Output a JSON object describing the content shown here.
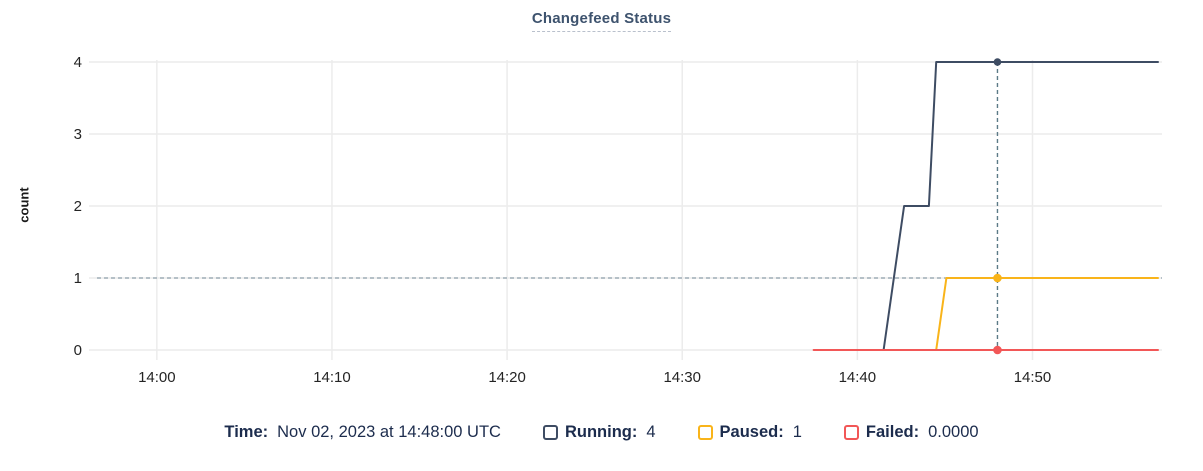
{
  "title": "Changefeed Status",
  "ylabel": "count",
  "colors": {
    "running": "#3e4c63",
    "paused": "#f9b41a",
    "failed": "#f25757",
    "grid": "#ececec",
    "crosshair": "#5c7a87",
    "crosshair_h": "#8fa1ac",
    "tick_text": "#242424",
    "legend_text": "#1c2c4d",
    "title_text": "#3e536e"
  },
  "legend": {
    "time_label": "Time:",
    "time_value": "Nov 02, 2023 at 14:48:00 UTC",
    "running_label": "Running:",
    "running_value": "4",
    "paused_label": "Paused:",
    "paused_value": "1",
    "failed_label": "Failed:",
    "failed_value": "0.0000"
  },
  "chart_data": {
    "type": "line",
    "title": "Changefeed Status",
    "xlabel": "",
    "ylabel": "count",
    "x_domain": [
      "13:56:35",
      "14:57:10"
    ],
    "x_ticks": [
      "14:00",
      "14:10",
      "14:20",
      "14:30",
      "14:40",
      "14:50"
    ],
    "y_ticks": [
      0,
      1,
      2,
      3,
      4
    ],
    "ylim": [
      0,
      4
    ],
    "grid": true,
    "legend_position": "bottom",
    "series": [
      {
        "name": "Running",
        "color_key": "running",
        "points": [
          [
            "14:41:30",
            0
          ],
          [
            "14:42:40",
            2
          ],
          [
            "14:44:05",
            2
          ],
          [
            "14:44:30",
            4
          ],
          [
            "14:57:10",
            4
          ]
        ]
      },
      {
        "name": "Paused",
        "color_key": "paused",
        "points": [
          [
            "14:44:30",
            0
          ],
          [
            "14:45:05",
            1
          ],
          [
            "14:57:10",
            1
          ]
        ]
      },
      {
        "name": "Failed",
        "color_key": "failed",
        "points": [
          [
            "14:37:30",
            0
          ],
          [
            "14:57:10",
            0
          ]
        ]
      }
    ],
    "hover": {
      "time": "14:48:00",
      "time_display": "Nov 02, 2023 at 14:48:00 UTC",
      "values": {
        "running": 4,
        "paused": 1,
        "failed": 0
      },
      "crosshair_y_value": 1
    }
  }
}
